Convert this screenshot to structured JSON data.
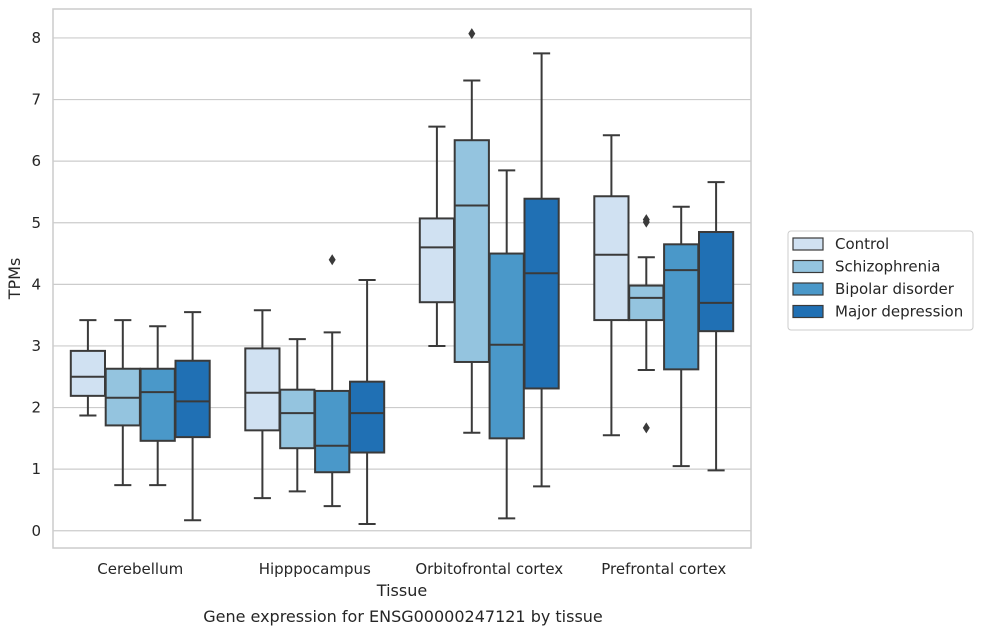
{
  "chart_data": {
    "type": "box",
    "title": "",
    "caption": "Gene expression for ENSG00000247121 by tissue",
    "xlabel": "Tissue",
    "ylabel": "TPMs",
    "ylim": [
      -0.28,
      8.47
    ],
    "yticks": [
      0,
      1,
      2,
      3,
      4,
      5,
      6,
      7,
      8
    ],
    "grid": "horizontal",
    "legend_position": "right",
    "categories": [
      "Cerebellum",
      "Hipppocampus",
      "Orbitofrontal cortex",
      "Prefrontal cortex"
    ],
    "series": [
      {
        "name": "Control",
        "color": "#d0e1f2",
        "boxes": [
          {
            "whislo": 1.87,
            "q1": 2.19,
            "med": 2.5,
            "q3": 2.92,
            "whishi": 3.42,
            "fliers": []
          },
          {
            "whislo": 0.53,
            "q1": 1.63,
            "med": 2.24,
            "q3": 2.96,
            "whishi": 3.58,
            "fliers": []
          },
          {
            "whislo": 3.0,
            "q1": 3.71,
            "med": 4.6,
            "q3": 5.07,
            "whishi": 6.56,
            "fliers": []
          },
          {
            "whislo": 1.55,
            "q1": 3.42,
            "med": 4.48,
            "q3": 5.43,
            "whishi": 6.42,
            "fliers": []
          }
        ]
      },
      {
        "name": "Schizophrenia",
        "color": "#94c4df",
        "boxes": [
          {
            "whislo": 0.74,
            "q1": 1.71,
            "med": 2.16,
            "q3": 2.63,
            "whishi": 3.42,
            "fliers": []
          },
          {
            "whislo": 0.64,
            "q1": 1.34,
            "med": 1.91,
            "q3": 2.29,
            "whishi": 3.11,
            "fliers": []
          },
          {
            "whislo": 1.59,
            "q1": 2.74,
            "med": 5.28,
            "q3": 6.34,
            "whishi": 7.31,
            "fliers": [
              8.07
            ]
          },
          {
            "whislo": 2.61,
            "q1": 3.42,
            "med": 3.78,
            "q3": 3.98,
            "whishi": 4.44,
            "fliers": [
              5.05,
              5.01,
              1.67
            ]
          }
        ]
      },
      {
        "name": "Bipolar disorder",
        "color": "#4a98c9",
        "boxes": [
          {
            "whislo": 0.74,
            "q1": 1.46,
            "med": 2.25,
            "q3": 2.63,
            "whishi": 3.32,
            "fliers": []
          },
          {
            "whislo": 0.4,
            "q1": 0.95,
            "med": 1.38,
            "q3": 2.27,
            "whishi": 3.22,
            "fliers": [
              4.4
            ]
          },
          {
            "whislo": 0.2,
            "q1": 1.5,
            "med": 3.02,
            "q3": 4.5,
            "whishi": 5.85,
            "fliers": []
          },
          {
            "whislo": 1.05,
            "q1": 2.62,
            "med": 4.23,
            "q3": 4.65,
            "whishi": 5.26,
            "fliers": []
          }
        ]
      },
      {
        "name": "Major depression",
        "color": "#2070b4",
        "boxes": [
          {
            "whislo": 0.17,
            "q1": 1.52,
            "med": 2.1,
            "q3": 2.76,
            "whishi": 3.55,
            "fliers": []
          },
          {
            "whislo": 0.11,
            "q1": 1.27,
            "med": 1.91,
            "q3": 2.42,
            "whishi": 4.07,
            "fliers": []
          },
          {
            "whislo": 0.72,
            "q1": 2.31,
            "med": 4.18,
            "q3": 5.39,
            "whishi": 7.75,
            "fliers": []
          },
          {
            "whislo": 0.98,
            "q1": 3.24,
            "med": 3.7,
            "q3": 4.85,
            "whishi": 5.66,
            "fliers": []
          }
        ]
      }
    ]
  }
}
